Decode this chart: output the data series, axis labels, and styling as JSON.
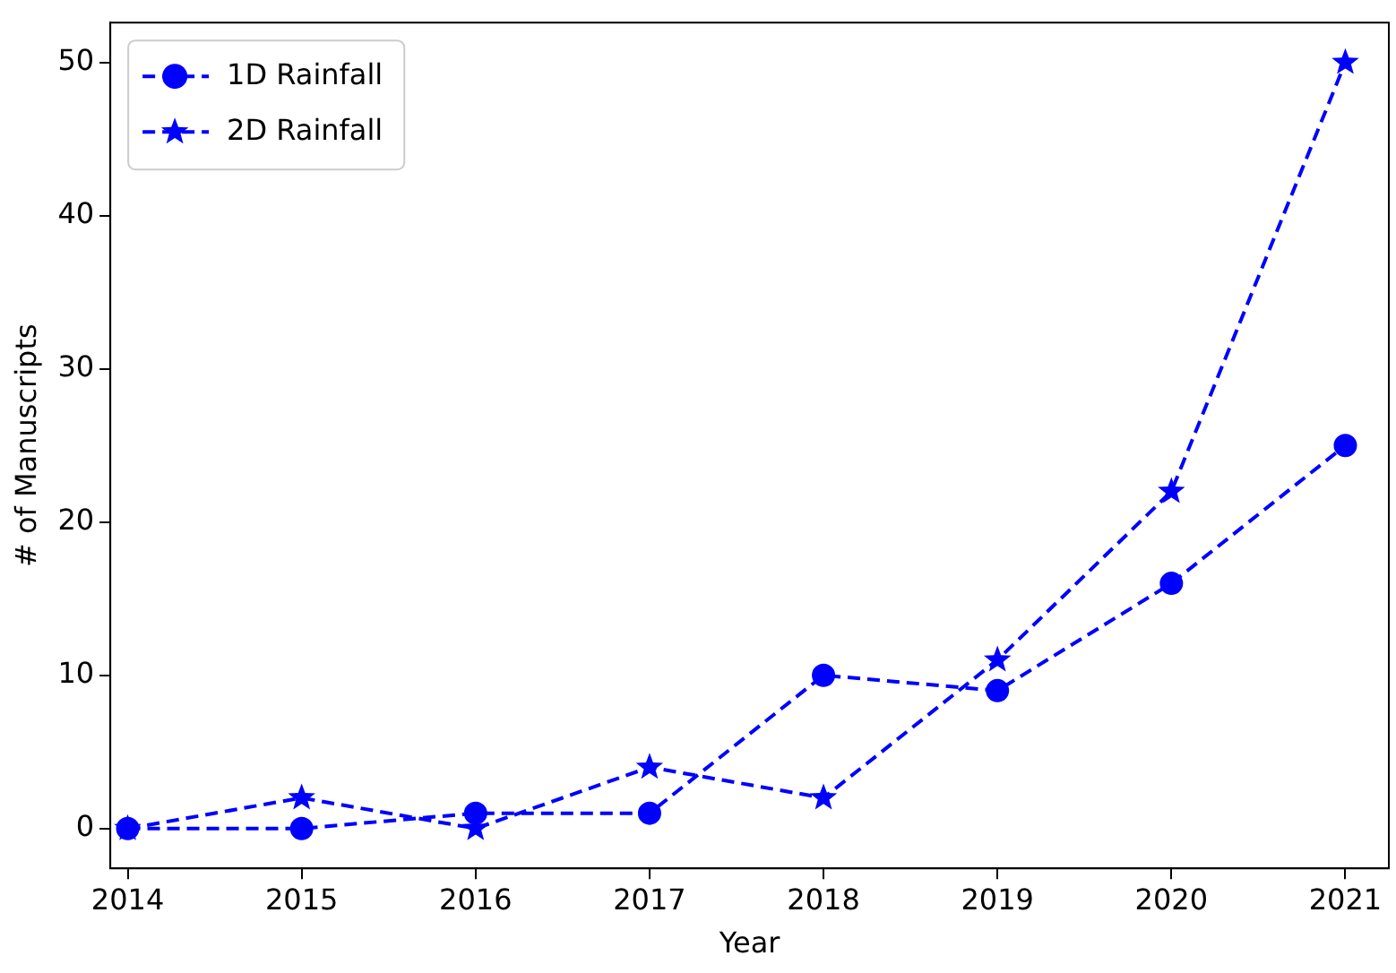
{
  "chart_data": {
    "type": "line",
    "xlabel": "Year",
    "ylabel": "# of Manuscripts",
    "x": [
      2014,
      2015,
      2016,
      2017,
      2018,
      2019,
      2020,
      2021
    ],
    "series": [
      {
        "name": "1D Rainfall",
        "color": "#0000ff",
        "marker": "circle",
        "values": [
          0,
          0,
          1,
          1,
          10,
          9,
          16,
          25
        ]
      },
      {
        "name": "2D Rainfall",
        "color": "#0000ff",
        "marker": "star",
        "values": [
          0,
          2,
          0,
          4,
          2,
          11,
          22,
          50
        ]
      }
    ],
    "xlim": [
      2013.9,
      2021.25
    ],
    "xticks": [
      2014,
      2015,
      2016,
      2017,
      2018,
      2019,
      2020,
      2021
    ],
    "ylim": [
      -2.6,
      52.6
    ],
    "yticks": [
      0,
      10,
      20,
      30,
      40,
      50
    ],
    "line_style": "dashed",
    "legend": "top left",
    "grid": false
  }
}
